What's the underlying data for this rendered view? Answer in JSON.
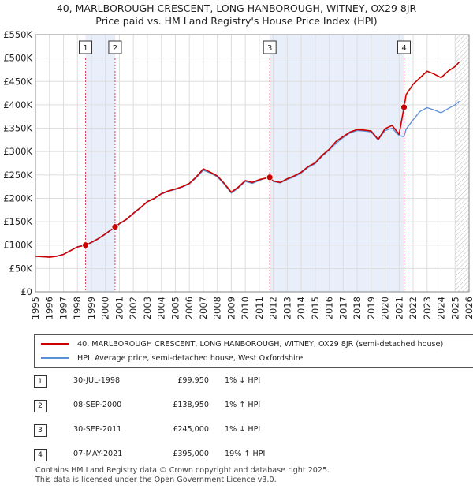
{
  "title_line1": "40, MARLBOROUGH CRESCENT, LONG HANBOROUGH, WITNEY, OX29 8JR",
  "title_line2": "Price paid vs. HM Land Registry's House Price Index (HPI)",
  "colors": {
    "price_line": "#cc0000",
    "hpi_line": "#5b8fd6",
    "shade": "#e8eefa",
    "grid": "#dddddd",
    "marker_line": "#dd4455"
  },
  "chart_data": {
    "type": "line",
    "title": "Price paid vs. HM Land Registry's House Price Index (HPI)",
    "xlabel": "",
    "ylabel": "",
    "xlim": [
      1995,
      2026
    ],
    "ylim": [
      0,
      550000
    ],
    "y_ticks": [
      0,
      50000,
      100000,
      150000,
      200000,
      250000,
      300000,
      350000,
      400000,
      450000,
      500000,
      550000
    ],
    "y_tick_labels": [
      "£0",
      "£50K",
      "£100K",
      "£150K",
      "£200K",
      "£250K",
      "£300K",
      "£350K",
      "£400K",
      "£450K",
      "£500K",
      "£550K"
    ],
    "x_ticks": [
      1995,
      1996,
      1997,
      1998,
      1999,
      2000,
      2001,
      2002,
      2003,
      2004,
      2005,
      2006,
      2007,
      2008,
      2009,
      2010,
      2011,
      2012,
      2013,
      2014,
      2015,
      2016,
      2017,
      2018,
      2019,
      2020,
      2021,
      2022,
      2023,
      2024,
      2025,
      2026
    ],
    "grid": true,
    "shaded_periods": [
      [
        1998.58,
        2000.69
      ],
      [
        2011.75,
        2021.35
      ]
    ],
    "future_hatch_from": 2025.0,
    "series": [
      {
        "name": "40, MARLBOROUGH CRESCENT, LONG HANBOROUGH, WITNEY, OX29 8JR (semi-detached house)",
        "color": "#cc0000",
        "x": [
          1995.0,
          1995.5,
          1996.0,
          1996.5,
          1997.0,
          1997.5,
          1998.0,
          1998.58,
          1999.0,
          1999.5,
          2000.0,
          2000.69,
          2001.0,
          2001.5,
          2002.0,
          2002.5,
          2003.0,
          2003.5,
          2004.0,
          2004.5,
          2005.0,
          2005.5,
          2006.0,
          2006.5,
          2007.0,
          2007.5,
          2008.0,
          2008.5,
          2009.0,
          2009.5,
          2010.0,
          2010.5,
          2011.0,
          2011.75,
          2012.0,
          2012.5,
          2013.0,
          2013.5,
          2014.0,
          2014.5,
          2015.0,
          2015.5,
          2016.0,
          2016.5,
          2017.0,
          2017.5,
          2018.0,
          2018.5,
          2019.0,
          2019.5,
          2020.0,
          2020.5,
          2021.0,
          2021.35,
          2021.5,
          2022.0,
          2022.5,
          2023.0,
          2023.5,
          2024.0,
          2024.5,
          2025.0,
          2025.3
        ],
        "values": [
          76000,
          75000,
          74000,
          76000,
          80000,
          88000,
          96000,
          99950,
          106000,
          114000,
          124000,
          138950,
          146000,
          155000,
          168000,
          180000,
          193000,
          200000,
          210000,
          216000,
          220000,
          225000,
          232000,
          246000,
          263000,
          256000,
          248000,
          232000,
          213000,
          224000,
          238000,
          234000,
          240000,
          245000,
          237000,
          234000,
          242000,
          248000,
          256000,
          268000,
          276000,
          292000,
          305000,
          322000,
          332000,
          342000,
          347000,
          346000,
          344000,
          326000,
          349000,
          356000,
          337000,
          395000,
          422000,
          444000,
          458000,
          472000,
          466000,
          458000,
          472000,
          482000,
          492000
        ]
      },
      {
        "name": "HPI: Average price, semi-detached house, West Oxfordshire",
        "color": "#5b8fd6",
        "x": [
          1995.0,
          1995.5,
          1996.0,
          1996.5,
          1997.0,
          1997.5,
          1998.0,
          1998.58,
          1999.0,
          1999.5,
          2000.0,
          2000.69,
          2001.0,
          2001.5,
          2002.0,
          2002.5,
          2003.0,
          2003.5,
          2004.0,
          2004.5,
          2005.0,
          2005.5,
          2006.0,
          2006.5,
          2007.0,
          2007.5,
          2008.0,
          2008.5,
          2009.0,
          2009.5,
          2010.0,
          2010.5,
          2011.0,
          2011.75,
          2012.0,
          2012.5,
          2013.0,
          2013.5,
          2014.0,
          2014.5,
          2015.0,
          2015.5,
          2016.0,
          2016.5,
          2017.0,
          2017.5,
          2018.0,
          2018.5,
          2019.0,
          2019.5,
          2020.0,
          2020.5,
          2021.0,
          2021.35,
          2021.5,
          2022.0,
          2022.5,
          2023.0,
          2023.5,
          2024.0,
          2024.5,
          2025.0,
          2025.3
        ],
        "values": [
          76000,
          75000,
          74500,
          76500,
          80500,
          88500,
          96500,
          101000,
          105000,
          113000,
          123000,
          137500,
          145000,
          154000,
          167000,
          179000,
          192000,
          199000,
          209000,
          215000,
          219000,
          224000,
          231000,
          244000,
          260000,
          254000,
          246000,
          230000,
          211000,
          222000,
          236000,
          232000,
          238000,
          247500,
          236000,
          233000,
          240000,
          246000,
          254000,
          266000,
          274000,
          290000,
          303000,
          318000,
          330000,
          340000,
          345000,
          344000,
          342000,
          325000,
          345000,
          350000,
          334000,
          332000,
          348000,
          368000,
          386000,
          394000,
          389000,
          383000,
          392000,
          400000,
          408000
        ]
      }
    ],
    "sales": [
      {
        "num": "1",
        "x": 1998.58,
        "value": 99950
      },
      {
        "num": "2",
        "x": 2000.69,
        "value": 138950
      },
      {
        "num": "3",
        "x": 2011.75,
        "value": 245000
      },
      {
        "num": "4",
        "x": 2021.35,
        "value": 395000
      }
    ]
  },
  "legend": {
    "price_label": "40, MARLBOROUGH CRESCENT, LONG HANBOROUGH, WITNEY, OX29 8JR (semi-detached house)",
    "hpi_label": "HPI: Average price, semi-detached house, West Oxfordshire"
  },
  "sales_table": [
    {
      "num": "1",
      "date": "30-JUL-1998",
      "price": "£99,950",
      "hpi": "1% ↓ HPI"
    },
    {
      "num": "2",
      "date": "08-SEP-2000",
      "price": "£138,950",
      "hpi": "1% ↑ HPI"
    },
    {
      "num": "3",
      "date": "30-SEP-2011",
      "price": "£245,000",
      "hpi": "1% ↓ HPI"
    },
    {
      "num": "4",
      "date": "07-MAY-2021",
      "price": "£395,000",
      "hpi": "19% ↑ HPI"
    }
  ],
  "footer_line1": "Contains HM Land Registry data © Crown copyright and database right 2025.",
  "footer_line2": "This data is licensed under the Open Government Licence v3.0."
}
